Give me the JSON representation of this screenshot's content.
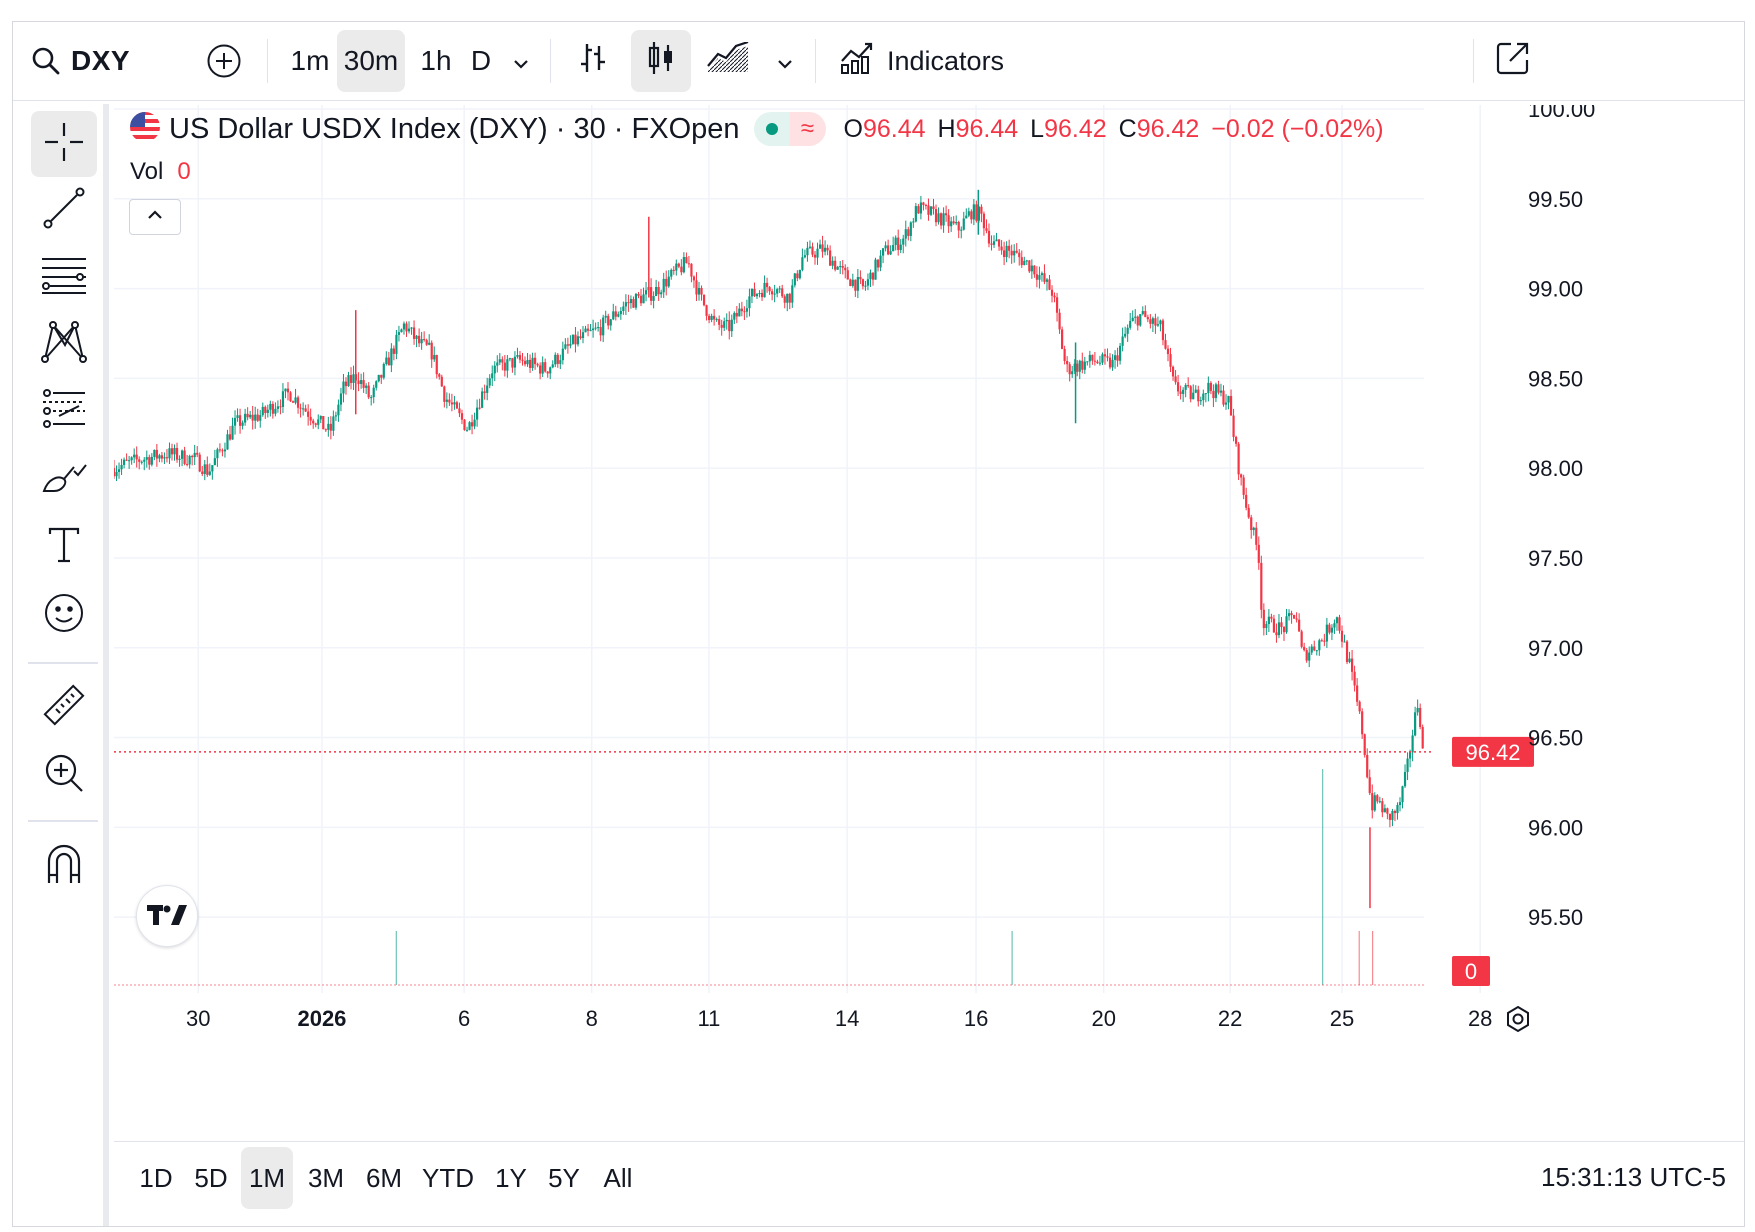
{
  "toolbar": {
    "symbol": "DXY",
    "intervals": [
      "1m",
      "30m",
      "1h",
      "D"
    ],
    "active_interval": "30m",
    "indicators_label": "Indicators",
    "icons": [
      "search-icon",
      "add-symbol-icon",
      "chevron-down-icon",
      "bar-chart-icon",
      "candlestick-icon",
      "area-chart-icon",
      "indicators-icon",
      "open-external-icon"
    ]
  },
  "sidebar": {
    "tools": [
      "crosshair-icon",
      "trend-line-icon",
      "fib-retracement-icon",
      "pattern-icon",
      "forecast-icon",
      "brush-icon",
      "text-icon",
      "emoji-icon",
      "ruler-icon",
      "zoom-in-icon",
      "magnet-icon"
    ],
    "active_tool": "crosshair-icon"
  },
  "legend": {
    "title": "US Dollar USDX Index (DXY) · 30 · FXOpen",
    "open_label": "O",
    "open": "96.44",
    "high_label": "H",
    "high": "96.44",
    "low_label": "L",
    "low": "96.42",
    "close_label": "C",
    "close": "96.42",
    "change": "−0.02 (−0.02%)",
    "volume_label": "Vol",
    "volume": "0",
    "collapse_icon": "chevron-up-icon",
    "flag_icon": "us-flag-icon"
  },
  "price_scale": {
    "ticks": [
      "100.00",
      "99.50",
      "99.00",
      "98.50",
      "98.00",
      "97.50",
      "97.00",
      "96.50",
      "96.00",
      "95.50"
    ],
    "last_price": "96.42",
    "last_volume": "0"
  },
  "time_scale": {
    "ticks": [
      "30",
      "2026",
      "6",
      "8",
      "11",
      "14",
      "16",
      "20",
      "22",
      "25",
      "28"
    ],
    "settings_icon": "settings-icon"
  },
  "bottom_bar": {
    "ranges": [
      "1D",
      "5D",
      "1M",
      "3M",
      "6M",
      "YTD",
      "1Y",
      "5Y",
      "All"
    ],
    "active_range": "1M",
    "clock": "15:31:13 UTC-5"
  },
  "colors": {
    "up": "#089981",
    "down": "#f23645",
    "last_price_bg": "#f23645",
    "grid": "#f0f3fa"
  },
  "chart_data": {
    "type": "candlestick",
    "title": "US Dollar USDX Index (DXY) · 30 · FXOpen",
    "interval": "30m",
    "ylim": [
      95.2,
      100.0
    ],
    "x_ticks": [
      "30",
      "2026",
      "6",
      "8",
      "11",
      "14",
      "16",
      "20",
      "22",
      "25",
      "28"
    ],
    "close_path": [
      {
        "t": 0,
        "v": 98.0
      },
      {
        "t": 2,
        "v": 98.05
      },
      {
        "t": 4,
        "v": 98.08
      },
      {
        "t": 6,
        "v": 98.05
      },
      {
        "t": 7,
        "v": 97.98
      },
      {
        "t": 9,
        "v": 98.25
      },
      {
        "t": 11,
        "v": 98.3
      },
      {
        "t": 13,
        "v": 98.42
      },
      {
        "t": 14.5,
        "v": 98.3
      },
      {
        "t": 16,
        "v": 98.2
      },
      {
        "t": 17,
        "v": 98.45
      },
      {
        "t": 18,
        "v": 98.52
      },
      {
        "t": 19,
        "v": 98.38
      },
      {
        "t": 21.5,
        "v": 98.8
      },
      {
        "t": 22.5,
        "v": 98.7
      },
      {
        "t": 23.5,
        "v": 98.65
      },
      {
        "t": 24.5,
        "v": 98.4
      },
      {
        "t": 26.2,
        "v": 98.22
      },
      {
        "t": 28,
        "v": 98.55
      },
      {
        "t": 30,
        "v": 98.6
      },
      {
        "t": 32,
        "v": 98.55
      },
      {
        "t": 34,
        "v": 98.7
      },
      {
        "t": 36,
        "v": 98.78
      },
      {
        "t": 38,
        "v": 98.92
      },
      {
        "t": 40,
        "v": 98.98
      },
      {
        "t": 41.7,
        "v": 99.1
      },
      {
        "t": 42.5,
        "v": 99.15
      },
      {
        "t": 43.4,
        "v": 98.95
      },
      {
        "t": 44.5,
        "v": 98.8
      },
      {
        "t": 45.5,
        "v": 98.78
      },
      {
        "t": 47,
        "v": 98.95
      },
      {
        "t": 48.5,
        "v": 99.02
      },
      {
        "t": 50,
        "v": 98.95
      },
      {
        "t": 51,
        "v": 99.18
      },
      {
        "t": 52.5,
        "v": 99.22
      },
      {
        "t": 54,
        "v": 99.08
      },
      {
        "t": 55.5,
        "v": 99.0
      },
      {
        "t": 57,
        "v": 99.2
      },
      {
        "t": 58.5,
        "v": 99.28
      },
      {
        "t": 59.5,
        "v": 99.45
      },
      {
        "t": 61,
        "v": 99.4
      },
      {
        "t": 62.5,
        "v": 99.33
      },
      {
        "t": 63.5,
        "v": 99.43
      },
      {
        "t": 64.2,
        "v": 99.41
      },
      {
        "t": 65,
        "v": 99.25
      },
      {
        "t": 66.5,
        "v": 99.2
      },
      {
        "t": 68,
        "v": 99.12
      },
      {
        "t": 69.5,
        "v": 98.98
      },
      {
        "t": 70.5,
        "v": 98.55
      },
      {
        "t": 72.5,
        "v": 98.6
      },
      {
        "t": 74,
        "v": 98.58
      },
      {
        "t": 75.2,
        "v": 98.8
      },
      {
        "t": 76,
        "v": 98.85
      },
      {
        "t": 77.5,
        "v": 98.78
      },
      {
        "t": 78.5,
        "v": 98.45
      },
      {
        "t": 80,
        "v": 98.4
      },
      {
        "t": 81,
        "v": 98.45
      },
      {
        "t": 82.5,
        "v": 98.38
      },
      {
        "t": 83.5,
        "v": 97.9
      },
      {
        "t": 84.8,
        "v": 97.5
      },
      {
        "t": 85,
        "v": 97.15
      },
      {
        "t": 86.5,
        "v": 97.1
      },
      {
        "t": 87.5,
        "v": 97.2
      },
      {
        "t": 88,
        "v": 96.95
      },
      {
        "t": 89.5,
        "v": 97.05
      },
      {
        "t": 90.5,
        "v": 97.18
      },
      {
        "t": 91.5,
        "v": 96.9
      },
      {
        "t": 92.4,
        "v": 96.55
      },
      {
        "t": 93.1,
        "v": 96.12
      },
      {
        "t": 93.6,
        "v": 96.15
      },
      {
        "t": 94.3,
        "v": 96.05
      },
      {
        "t": 95.1,
        "v": 96.1
      },
      {
        "t": 95.7,
        "v": 96.3
      },
      {
        "t": 96.2,
        "v": 96.55
      },
      {
        "t": 96.6,
        "v": 96.72
      },
      {
        "t": 96.9,
        "v": 96.42
      }
    ],
    "events": [
      {
        "t": 17.9,
        "wick_low": 98.3,
        "wick_high": 98.88
      },
      {
        "t": 39.6,
        "wick_low": 98.95,
        "wick_high": 99.4
      },
      {
        "t": 64.0,
        "wick_low": 99.3,
        "wick_high": 99.55
      },
      {
        "t": 71.2,
        "wick_low": 98.25,
        "wick_high": 98.7
      },
      {
        "t": 93.0,
        "wick_low": 95.55,
        "wick_high": 96.0
      }
    ],
    "last_price": 96.42,
    "volume_spikes": [
      {
        "t": 20.9,
        "v": 0.6
      },
      {
        "t": 66.5,
        "v": 0.6
      },
      {
        "t": 89.5,
        "v": 2.4
      },
      {
        "t": 92.2,
        "v": 0.6
      },
      {
        "t": 93.2,
        "v": 0.6
      }
    ]
  }
}
